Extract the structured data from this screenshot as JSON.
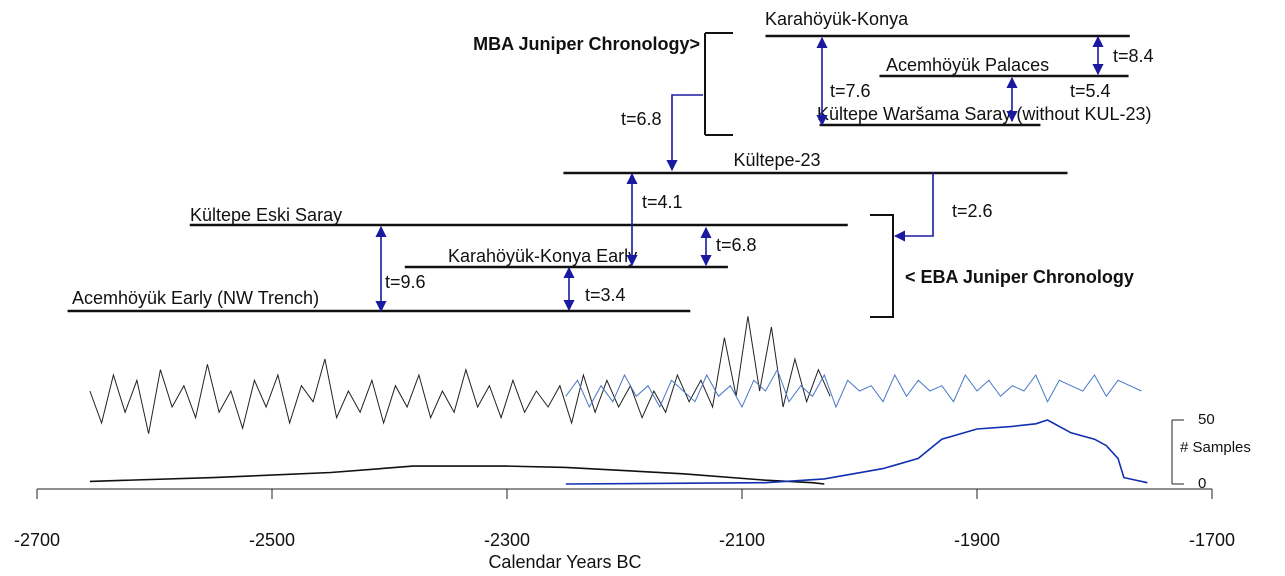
{
  "chart_data": {
    "type": "chronology",
    "xlabel": "Calendar Years BC",
    "xlim": [
      -2700,
      -1700
    ],
    "xticks": [
      -2700,
      -2500,
      -2300,
      -2100,
      -1900,
      -1700
    ],
    "ylim": [
      0,
      3
    ],
    "y2label": "# Samples",
    "y2lim": [
      0,
      50
    ],
    "y2ticks": [
      0,
      50
    ],
    "groups": [
      "MBA Juniper Chronology>",
      "< EBA Juniper Chronology"
    ],
    "chronologies": [
      {
        "name": "Karahöyük-Konya",
        "start": -2080,
        "end": -1770
      },
      {
        "name": "Acemhöyük Palaces",
        "start": -1983,
        "end": -1771
      },
      {
        "name": "Kültepe Waršama Saray (without KUL-23)",
        "start": -2034,
        "end": -1846
      },
      {
        "name": "Kültepe-23",
        "start": -2252,
        "end": -1823
      },
      {
        "name": "Kültepe Eski Saray",
        "start": -2570,
        "end": -2010
      },
      {
        "name": "Karahöyük-Konya Early",
        "start": -2387,
        "end": -2112
      },
      {
        "name": "Acemhöyük Early (NW Trench)",
        "start": -2674,
        "end": -2144
      }
    ],
    "comparisons": [
      "t=8.4",
      "t=5.4",
      "t=7.6",
      "t=6.8",
      "t=4.1",
      "t=2.6",
      "t=6.8",
      "t=9.6",
      "t=3.4"
    ],
    "series": [
      {
        "color": "#222222",
        "x": [
          -2655,
          -2645,
          -2635,
          -2625,
          -2615,
          -2605,
          -2595,
          -2585,
          -2575,
          -2565,
          -2555,
          -2545,
          -2535,
          -2525,
          -2515,
          -2505,
          -2495,
          -2485,
          -2475,
          -2465,
          -2455,
          -2445,
          -2435,
          -2425,
          -2415,
          -2405,
          -2395,
          -2385,
          -2375,
          -2365,
          -2355,
          -2345,
          -2335,
          -2325,
          -2315,
          -2305,
          -2295,
          -2285,
          -2275,
          -2265,
          -2255,
          -2245,
          -2235,
          -2225,
          -2215,
          -2205,
          -2195,
          -2185,
          -2175,
          -2165,
          -2155,
          -2145,
          -2135,
          -2125,
          -2115,
          -2105,
          -2095,
          -2085,
          -2075,
          -2065,
          -2055,
          -2045,
          -2035,
          -2025
        ],
        "values": [
          1.2,
          0.6,
          1.5,
          0.8,
          1.4,
          0.4,
          1.6,
          0.9,
          1.3,
          0.7,
          1.7,
          0.8,
          1.2,
          0.5,
          1.4,
          0.9,
          1.5,
          0.6,
          1.3,
          1.0,
          1.8,
          0.7,
          1.2,
          0.8,
          1.4,
          0.6,
          1.3,
          0.9,
          1.5,
          0.7,
          1.2,
          0.8,
          1.6,
          0.9,
          1.3,
          0.7,
          1.4,
          0.8,
          1.2,
          0.9,
          1.3,
          0.6,
          1.5,
          0.8,
          1.4,
          0.9,
          1.3,
          0.7,
          1.2,
          0.8,
          1.5,
          1.0,
          1.4,
          0.9,
          2.2,
          1.1,
          2.6,
          1.2,
          2.4,
          0.9,
          1.8,
          1.0,
          1.6,
          1.1
        ]
      },
      {
        "color": "#4a78c8",
        "x": [
          -2250,
          -2240,
          -2230,
          -2220,
          -2210,
          -2200,
          -2190,
          -2180,
          -2170,
          -2160,
          -2150,
          -2140,
          -2130,
          -2120,
          -2110,
          -2100,
          -2090,
          -2080,
          -2070,
          -2060,
          -2050,
          -2040,
          -2030,
          -2020,
          -2010,
          -2000,
          -1990,
          -1980,
          -1970,
          -1960,
          -1950,
          -1940,
          -1930,
          -1920,
          -1910,
          -1900,
          -1890,
          -1880,
          -1870,
          -1860,
          -1850,
          -1840,
          -1830,
          -1820,
          -1810,
          -1800,
          -1790,
          -1780,
          -1770,
          -1760
        ],
        "values": [
          1.1,
          1.4,
          0.9,
          1.3,
          1.0,
          1.5,
          1.1,
          1.3,
          0.9,
          1.4,
          1.2,
          1.0,
          1.5,
          1.1,
          1.3,
          0.9,
          1.4,
          1.2,
          1.6,
          1.0,
          1.3,
          1.1,
          1.5,
          0.9,
          1.4,
          1.2,
          1.3,
          1.0,
          1.5,
          1.1,
          1.4,
          1.2,
          1.3,
          1.0,
          1.5,
          1.2,
          1.4,
          1.1,
          1.3,
          1.2,
          1.5,
          1.0,
          1.4,
          1.3,
          1.2,
          1.5,
          1.1,
          1.4,
          1.3,
          1.2
        ]
      }
    ],
    "samples": [
      {
        "color": "#111111",
        "x": [
          -2655,
          -2550,
          -2450,
          -2380,
          -2300,
          -2250,
          -2150,
          -2080,
          -2040,
          -2030
        ],
        "values": [
          2,
          5,
          9,
          14,
          14,
          13,
          8,
          3,
          1,
          0
        ]
      },
      {
        "color": "#1030b0",
        "x": [
          -2250,
          -2080,
          -2030,
          -1980,
          -1950,
          -1930,
          -1900,
          -1870,
          -1850,
          -1840,
          -1820,
          -1800,
          -1790,
          -1780,
          -1775,
          -1755
        ],
        "values": [
          0,
          1,
          4,
          12,
          20,
          35,
          43,
          45,
          47,
          50,
          40,
          35,
          30,
          20,
          5,
          1
        ]
      }
    ]
  }
}
